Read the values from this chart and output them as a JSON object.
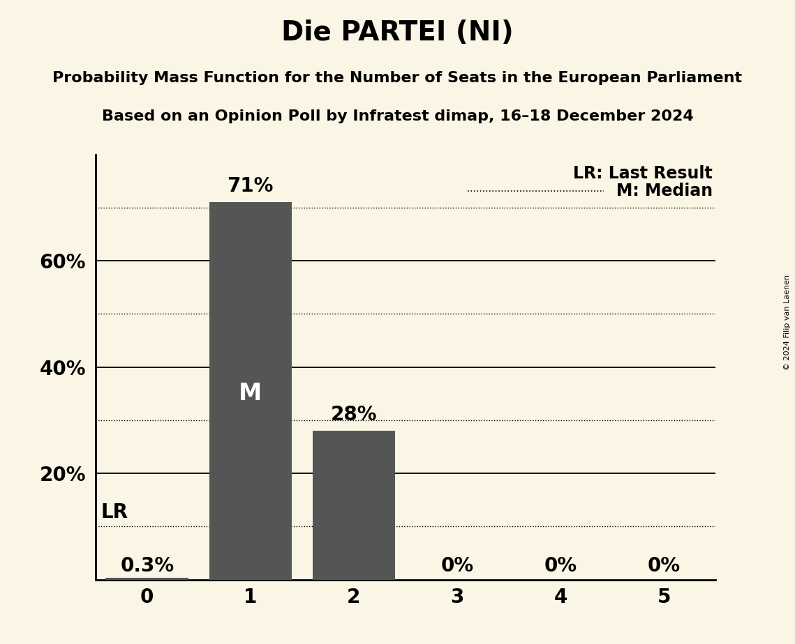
{
  "title": "Die PARTEI (NI)",
  "subtitle1": "Probability Mass Function for the Number of Seats in the European Parliament",
  "subtitle2": "Based on an Opinion Poll by Infratest dimap, 16–18 December 2024",
  "copyright": "© 2024 Filip van Laenen",
  "categories": [
    0,
    1,
    2,
    3,
    4,
    5
  ],
  "values": [
    0.003,
    0.71,
    0.28,
    0.0,
    0.0,
    0.0
  ],
  "bar_labels": [
    "0.3%",
    "71%",
    "28%",
    "0%",
    "0%",
    "0%"
  ],
  "bar_color": "#555555",
  "median": 1,
  "lr_value": 0.1,
  "lr_label": "LR",
  "legend_lr": "LR: Last Result",
  "legend_m": "M: Median",
  "background_color": "#faf5e4",
  "ylim": [
    0,
    0.8
  ],
  "yticks": [
    0.2,
    0.4,
    0.6
  ],
  "ytick_labels": [
    "20%",
    "40%",
    "60%"
  ],
  "solid_gridlines": [
    0.2,
    0.4,
    0.6
  ],
  "dotted_gridlines": [
    0.1,
    0.3,
    0.5,
    0.7
  ],
  "title_fontsize": 28,
  "subtitle_fontsize": 16,
  "bar_label_fontsize": 20,
  "axis_tick_fontsize": 20,
  "legend_fontsize": 17,
  "median_label_fontsize": 24
}
